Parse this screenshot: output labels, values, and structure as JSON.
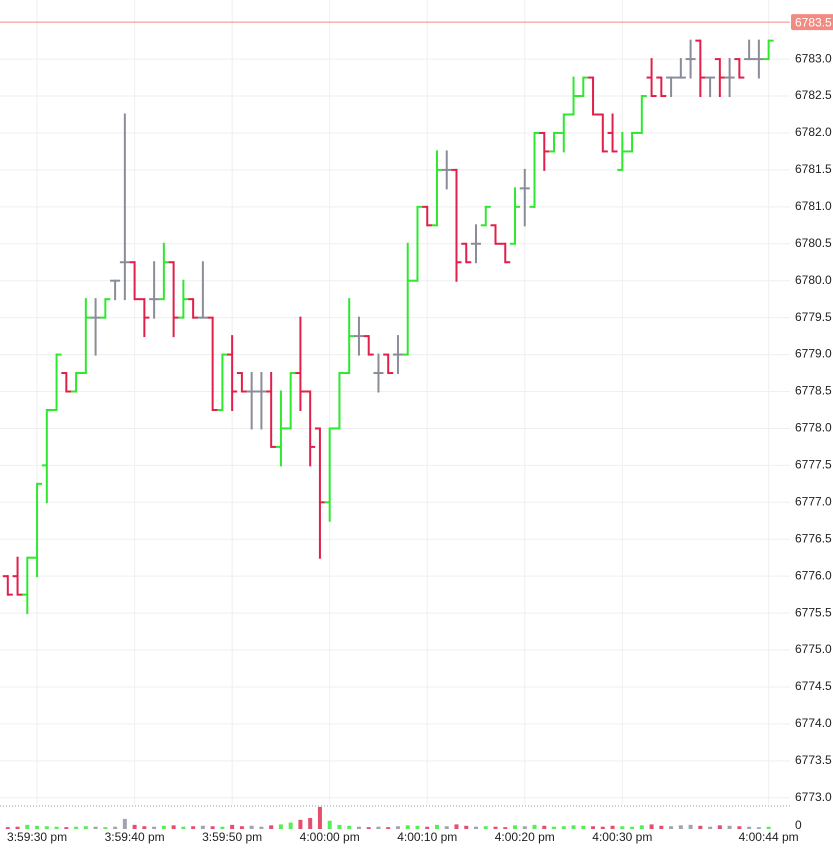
{
  "chart_data": {
    "type": "ohlc",
    "open": [
      6776.0,
      6776.0,
      6775.75,
      6776.25,
      6777.5,
      6778.25,
      6778.75,
      6778.5,
      6778.75,
      6779.5,
      6779.5,
      6780.0,
      6780.25,
      6780.25,
      6779.75,
      6779.75,
      6779.75,
      6780.25,
      6779.5,
      6779.75,
      6779.5,
      6779.5,
      6778.25,
      6779.0,
      6778.75,
      6778.5,
      6778.5,
      6778.5,
      6777.75,
      6778.0,
      6778.75,
      6778.5,
      6778.0,
      6777.0,
      6778.0,
      6778.75,
      6779.25,
      6779.25,
      6778.75,
      6779.0,
      6779.0,
      6779.0,
      6780.0,
      6781.0,
      6780.75,
      6781.5,
      6781.5,
      6780.5,
      6780.5,
      6780.75,
      6780.75,
      6780.5,
      6780.5,
      6781.25,
      6781.0,
      6782.0,
      6781.75,
      6782.0,
      6782.25,
      6782.5,
      6782.75,
      6782.25,
      6782.0,
      6781.5,
      6781.75,
      6782.0,
      6782.75,
      6782.75,
      6782.75,
      6782.75,
      6783.0,
      6783.25,
      6782.75,
      6783.0,
      6782.75,
      6783.0,
      6783.0,
      6783.0,
      6783.0
    ],
    "high": [
      6776.0,
      6776.25,
      6776.25,
      6777.25,
      6778.25,
      6779.0,
      6778.75,
      6778.75,
      6779.75,
      6779.75,
      6779.75,
      6780.0,
      6782.25,
      6780.25,
      6779.75,
      6780.25,
      6780.5,
      6780.25,
      6780.0,
      6779.75,
      6780.25,
      6779.5,
      6779.0,
      6779.25,
      6778.75,
      6778.75,
      6778.75,
      6778.75,
      6778.5,
      6778.75,
      6779.5,
      6778.5,
      6778.0,
      6778.0,
      6778.75,
      6779.75,
      6779.5,
      6779.25,
      6779.0,
      6779.0,
      6779.25,
      6780.5,
      6781.0,
      6781.0,
      6781.75,
      6781.75,
      6781.5,
      6780.5,
      6780.75,
      6781.0,
      6780.75,
      6780.5,
      6781.25,
      6781.5,
      6782.0,
      6782.0,
      6782.0,
      6782.25,
      6782.75,
      6782.75,
      6782.75,
      6782.25,
      6782.25,
      6782.0,
      6782.0,
      6782.5,
      6783.0,
      6782.75,
      6782.75,
      6783.0,
      6783.25,
      6783.25,
      6782.75,
      6783.0,
      6783.0,
      6783.0,
      6783.25,
      6783.25,
      6783.25
    ],
    "low": [
      6775.75,
      6775.75,
      6775.5,
      6776.0,
      6777.0,
      6778.25,
      6778.5,
      6778.5,
      6778.75,
      6779.0,
      6779.5,
      6779.75,
      6779.75,
      6779.75,
      6779.25,
      6779.5,
      6779.75,
      6779.25,
      6779.5,
      6779.5,
      6779.5,
      6778.25,
      6778.25,
      6778.25,
      6778.5,
      6778.0,
      6778.0,
      6777.75,
      6777.5,
      6778.0,
      6778.25,
      6777.5,
      6776.25,
      6776.75,
      6778.0,
      6778.75,
      6779.0,
      6779.0,
      6778.5,
      6778.75,
      6778.75,
      6779.0,
      6780.0,
      6780.75,
      6780.75,
      6781.25,
      6780.0,
      6780.25,
      6780.25,
      6780.75,
      6780.5,
      6780.25,
      6780.5,
      6780.75,
      6781.0,
      6781.5,
      6781.75,
      6781.75,
      6782.25,
      6782.5,
      6782.25,
      6781.75,
      6781.75,
      6781.5,
      6781.75,
      6782.0,
      6782.5,
      6782.5,
      6782.5,
      6782.75,
      6782.75,
      6782.5,
      6782.5,
      6782.5,
      6782.5,
      6782.75,
      6783.0,
      6782.75,
      6783.0
    ],
    "close": [
      6775.75,
      6775.75,
      6776.25,
      6777.25,
      6778.25,
      6779.0,
      6778.5,
      6778.75,
      6779.5,
      6779.5,
      6779.75,
      6780.0,
      6780.25,
      6779.75,
      6779.5,
      6779.75,
      6780.25,
      6779.5,
      6779.75,
      6779.5,
      6779.5,
      6778.25,
      6779.0,
      6778.5,
      6778.5,
      6778.5,
      6778.5,
      6777.75,
      6778.0,
      6778.75,
      6778.5,
      6777.75,
      6777.0,
      6778.0,
      6778.75,
      6779.25,
      6779.25,
      6779.0,
      6778.75,
      6778.75,
      6779.0,
      6780.0,
      6781.0,
      6780.75,
      6781.5,
      6781.5,
      6780.25,
      6780.25,
      6780.5,
      6781.0,
      6780.5,
      6780.25,
      6781.0,
      6781.25,
      6782.0,
      6781.75,
      6782.0,
      6782.25,
      6782.5,
      6782.75,
      6782.25,
      6781.75,
      6781.75,
      6781.75,
      6782.0,
      6782.5,
      6782.5,
      6782.5,
      6782.75,
      6782.75,
      6783.0,
      6782.75,
      6782.75,
      6782.75,
      6782.75,
      6782.75,
      6783.0,
      6783.0,
      6783.25
    ],
    "volume": [
      400,
      500,
      900,
      700,
      600,
      500,
      400,
      500,
      600,
      500,
      400,
      500,
      2200,
      900,
      600,
      500,
      700,
      800,
      500,
      600,
      700,
      600,
      500,
      900,
      600,
      700,
      500,
      800,
      1000,
      1400,
      2000,
      2400,
      4800,
      1800,
      900,
      700,
      500,
      400,
      500,
      400,
      600,
      800,
      700,
      500,
      900,
      600,
      1000,
      700,
      500,
      600,
      500,
      400,
      800,
      600,
      900,
      700,
      500,
      600,
      800,
      700,
      600,
      500,
      700,
      600,
      500,
      800,
      1000,
      700,
      600,
      800,
      900,
      700,
      500,
      800,
      700,
      600,
      500,
      400,
      500
    ],
    "up_color": "#2ee82e",
    "down_color": "#e0204a",
    "flat_color": "#8a8d98",
    "last_price": 6783.5,
    "last_price_color": "#f28b82",
    "xlim": [
      -0.8,
      84.6
    ],
    "xticks": [
      {
        "value": 3,
        "label": "3:59:30 pm"
      },
      {
        "value": 13,
        "label": "3:59:40 pm"
      },
      {
        "value": 23,
        "label": "3:59:50 pm"
      },
      {
        "value": 33,
        "label": "4:00:00 pm"
      },
      {
        "value": 43,
        "label": "4:00:10 pm"
      },
      {
        "value": 53,
        "label": "4:00:20 pm"
      },
      {
        "value": 63,
        "label": "4:00:30 pm"
      },
      {
        "value": 78,
        "label": "4:00:44 pm"
      }
    ],
    "ylim": [
      6772.97,
      6783.8
    ],
    "yticks": [
      {
        "value": 6773,
        "label": "6773.0"
      },
      6773.5,
      {
        "value": 6774,
        "label": "6774.0"
      },
      6774.5,
      {
        "value": 6775,
        "label": "6775.0"
      },
      6775.5,
      {
        "value": 6776,
        "label": "6776.0"
      },
      6776.5,
      {
        "value": 6777,
        "label": "6777.0"
      },
      6777.5,
      {
        "value": 6778,
        "label": "6778.0"
      },
      6778.5,
      {
        "value": 6779,
        "label": "6779.0"
      },
      6779.5,
      {
        "value": 6780,
        "label": "6780.0"
      },
      6780.5,
      {
        "value": 6781,
        "label": "6781.0"
      },
      6781.5,
      {
        "value": 6782,
        "label": "6782.0"
      },
      6782.5,
      {
        "value": 6783,
        "label": "6783.0"
      }
    ],
    "volume_lim": [
      0,
      5000
    ],
    "volume_ticks": [
      0
    ],
    "grid": true
  }
}
